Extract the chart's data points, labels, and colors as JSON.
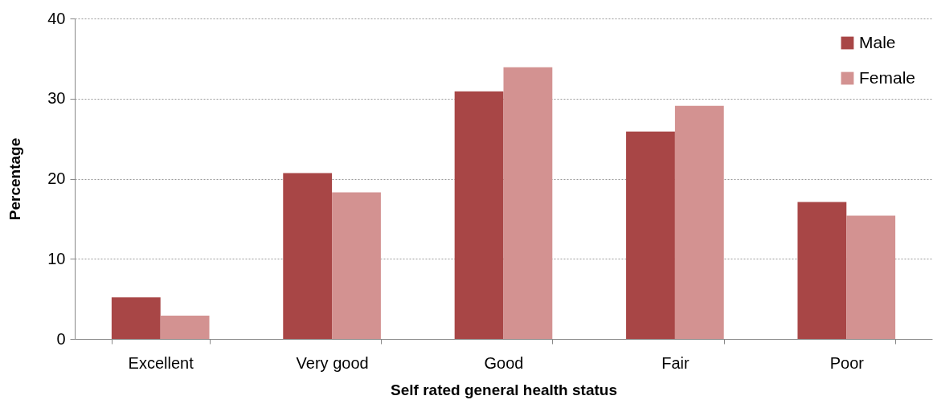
{
  "chart_data": {
    "type": "bar",
    "xlabel": "Self rated general health status",
    "ylabel": "Percentage",
    "categories": [
      "Excellent",
      "Very good",
      "Good",
      "Fair",
      "Poor"
    ],
    "series": [
      {
        "name": "Male",
        "color": "#a84646",
        "values": [
          5.2,
          20.7,
          30.9,
          25.9,
          17.1
        ]
      },
      {
        "name": "Female",
        "color": "#d39291",
        "values": [
          2.9,
          18.3,
          33.9,
          29.1,
          15.4
        ]
      }
    ],
    "ylim": [
      0,
      40
    ],
    "yticks": [
      0,
      10,
      20,
      30,
      40
    ],
    "grid": "y",
    "legend": "top right"
  }
}
